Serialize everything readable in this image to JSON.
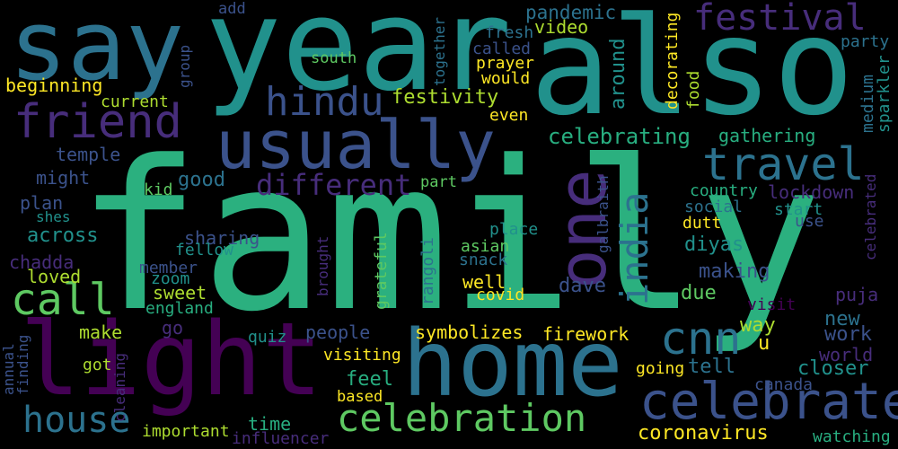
{
  "words": {
    "family": "family",
    "also": "also",
    "year": "year",
    "say": "say",
    "home": "home",
    "light": "light",
    "usually": "usually",
    "one": "one",
    "celebrate": "celebrate",
    "friend": "friend",
    "travel": "travel",
    "celebration": "celebration",
    "house": "house",
    "cnn": "cnn",
    "call": "call",
    "hindu": "hindu",
    "festival": "festival",
    "different": "different",
    "india": "india",
    "celebrating": "celebrating",
    "festivity": "festivity",
    "pandemic": "pandemic",
    "video": "video",
    "fresh": "fresh",
    "called": "called",
    "prayer": "prayer",
    "would": "would",
    "together": "together",
    "add": "add",
    "group": "group",
    "south": "south",
    "beginning": "beginning",
    "current": "current",
    "temple": "temple",
    "might": "might",
    "plan": "plan",
    "shes": "shes",
    "kid": "kid",
    "good": "good",
    "across": "across",
    "chadda": "chadda",
    "loved": "loved",
    "member": "member",
    "zoom": "zoom",
    "england": "england",
    "sweet": "sweet",
    "sharing": "sharing",
    "fellow": "fellow",
    "go": "go",
    "make": "make",
    "got": "got",
    "quiz": "quiz",
    "people": "people",
    "visiting": "visiting",
    "feel": "feel",
    "based": "based",
    "time": "time",
    "important": "important",
    "influencer": "influencer",
    "coronavirus": "coronavirus",
    "symbolizes": "symbolizes",
    "firework": "firework",
    "well": "well",
    "covid": "covid",
    "asian": "asian",
    "snack": "snack",
    "place": "place",
    "part": "part",
    "even": "even",
    "around": "around",
    "decorating": "decorating",
    "food": "food",
    "gathering": "gathering",
    "country": "country",
    "social": "social",
    "dutt": "dutt",
    "lockdown": "lockdown",
    "start": "start",
    "use": "use",
    "diyas": "diyas",
    "making": "making",
    "due": "due",
    "dave": "dave",
    "way": "way",
    "u": "u",
    "new": "new",
    "work": "work",
    "world": "world",
    "closer": "closer",
    "tell": "tell",
    "going": "going",
    "canada": "canada",
    "watching": "watching",
    "puja": "puja",
    "visit": "visit",
    "party": "party",
    "medium": "medium",
    "sparkler": "sparkler",
    "celebrated": "celebrated",
    "galbraith": "galbraith",
    "rangoli": "rangoli",
    "grateful": "grateful",
    "brought": "brought",
    "cleaning": "cleaning",
    "annual": "annual",
    "finding": "finding"
  },
  "palette": {
    "background": "#000000",
    "viridis": [
      "#440154",
      "#472d7b",
      "#3b528b",
      "#2c728e",
      "#21918c",
      "#28ae80",
      "#5ec962",
      "#addc30",
      "#fde725"
    ]
  }
}
